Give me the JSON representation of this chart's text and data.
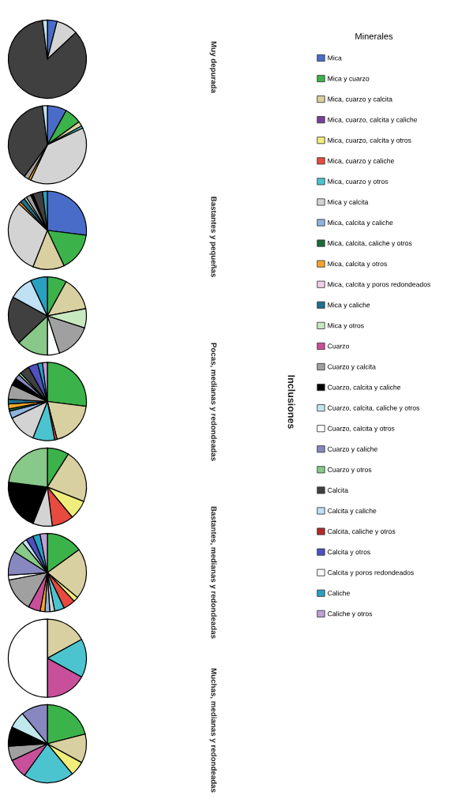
{
  "chart_data": [
    {
      "type": "pie",
      "annotations": [
        "Muy depurada",
        "Bastantes y pequeñas",
        "Pocas, medianas y redondeadas",
        "Bastantes, medianas y redondeadas",
        "Muchas, medianas y redondeadas",
        "Inclusiones"
      ],
      "legend": "right",
      "legend_title": "Minerales",
      "categories": [
        "Mica",
        "Mica y cuarzo",
        "Mica, cuarzo y calcita",
        "Mica, cuarzo, calcita y caliche",
        "Mica, cuarzo, calcita y otros",
        "Mica, cuarzo y caliche",
        "Mica, cuarzo y otros",
        "Mica y calcita",
        "Mica, calcita y caliche",
        "Mica, calcita, caliche y otros",
        "Mica, calcita y otros",
        "Mica, calcita y poros redondeados",
        "Mica y caliche",
        "Mica y otros",
        "Cuarzo",
        "Cuarzo y calcita",
        "Cuarzo, calcita y caliche",
        "Cuarzo, calcita, caliche y otros",
        "Cuarzo, calcita y otros",
        "Cuarzo y caliche",
        "Cuarzo y otros",
        "Calcita",
        "Calcita y caliche",
        "Calcita, caliche y otros",
        "Calcita y otros",
        "Calcita y poros redondeados",
        "Caliche",
        "Caliche y otros"
      ],
      "colors": [
        "#4a6cc9",
        "#3cb34a",
        "#d8d0a0",
        "#7b3f9a",
        "#f0ee7a",
        "#e84a3f",
        "#4cc4cf",
        "#d3d3d3",
        "#8fb4e0",
        "#1a6b3a",
        "#f4a62a",
        "#f2d0ea",
        "#1f6f8f",
        "#c8e8c0",
        "#c8509a",
        "#a0a0a0",
        "#000000",
        "#c0e8ec",
        "#ffffff",
        "#8888c0",
        "#88c888",
        "#404040",
        "#c0e0f4",
        "#b02a2a",
        "#5050c0",
        "#f8f8f8",
        "#2aa0c0",
        "#c0a0d8"
      ],
      "values": [
        4,
        null,
        null,
        null,
        null,
        null,
        null,
        9,
        null,
        null,
        null,
        null,
        null,
        null,
        null,
        null,
        null,
        null,
        null,
        null,
        null,
        85,
        2,
        null,
        null,
        null,
        null,
        null
      ]
    },
    {
      "type": "pie",
      "colors": [
        "#4a6cc9",
        "#3cb34a",
        "#d8d0a0",
        "#7b3f9a",
        "#f0ee7a",
        "#e84a3f",
        "#4cc4cf",
        "#d3d3d3",
        "#8fb4e0",
        "#1a6b3a",
        "#f4a62a",
        "#f2d0ea",
        "#1f6f8f",
        "#c8e8c0",
        "#c8509a",
        "#a0a0a0",
        "#000000",
        "#c0e8ec",
        "#ffffff",
        "#8888c0",
        "#88c888",
        "#404040",
        "#c0e0f4",
        "#b02a2a",
        "#5050c0",
        "#f8f8f8",
        "#2aa0c0",
        "#c0a0d8"
      ],
      "values": [
        8,
        7,
        2,
        null,
        null,
        null,
        1,
        39,
        null,
        null,
        1,
        null,
        null,
        null,
        null,
        2,
        null,
        null,
        null,
        null,
        null,
        38,
        2,
        null,
        null,
        null,
        null,
        null
      ]
    },
    {
      "type": "pie",
      "colors": [
        "#4a6cc9",
        "#3cb34a",
        "#d8d0a0",
        "#7b3f9a",
        "#f0ee7a",
        "#e84a3f",
        "#4cc4cf",
        "#d3d3d3",
        "#8fb4e0",
        "#1a6b3a",
        "#f4a62a",
        "#f2d0ea",
        "#1f6f8f",
        "#c8e8c0",
        "#c8509a",
        "#a0a0a0",
        "#000000",
        "#c0e8ec",
        "#ffffff",
        "#8888c0",
        "#88c888",
        "#404040",
        "#c0e0f4",
        "#b02a2a",
        "#5050c0",
        "#f8f8f8",
        "#2aa0c0",
        "#c0a0d8"
      ],
      "values": [
        27,
        16,
        13,
        null,
        null,
        null,
        null,
        31,
        null,
        null,
        1,
        null,
        2,
        1,
        null,
        2,
        1,
        null,
        null,
        null,
        null,
        4,
        null,
        null,
        null,
        null,
        2,
        null
      ]
    },
    {
      "type": "pie",
      "colors": [
        "#4a6cc9",
        "#3cb34a",
        "#d8d0a0",
        "#7b3f9a",
        "#f0ee7a",
        "#e84a3f",
        "#4cc4cf",
        "#d3d3d3",
        "#8fb4e0",
        "#1a6b3a",
        "#f4a62a",
        "#f2d0ea",
        "#1f6f8f",
        "#c8e8c0",
        "#c8509a",
        "#a0a0a0",
        "#000000",
        "#c0e8ec",
        "#ffffff",
        "#8888c0",
        "#88c888",
        "#404040",
        "#c0e0f4",
        "#b02a2a",
        "#5050c0",
        "#f8f8f8",
        "#2aa0c0",
        "#c0a0d8"
      ],
      "values": [
        null,
        8,
        14,
        null,
        null,
        null,
        null,
        null,
        null,
        null,
        null,
        null,
        null,
        8,
        null,
        15,
        null,
        null,
        5,
        null,
        13,
        20,
        10,
        null,
        null,
        null,
        7,
        null
      ]
    },
    {
      "type": "pie",
      "colors": [
        "#4a6cc9",
        "#3cb34a",
        "#d8d0a0",
        "#7b3f9a",
        "#f0ee7a",
        "#e84a3f",
        "#4cc4cf",
        "#d3d3d3",
        "#8fb4e0",
        "#1a6b3a",
        "#f4a62a",
        "#f2d0ea",
        "#1f6f8f",
        "#c8e8c0",
        "#c8509a",
        "#a0a0a0",
        "#000000",
        "#c0e8ec",
        "#ffffff",
        "#8888c0",
        "#88c888",
        "#404040",
        "#c0e0f4",
        "#b02a2a",
        "#5050c0",
        "#f8f8f8",
        "#2aa0c0",
        "#c0a0d8"
      ],
      "values": [
        null,
        27,
        19,
        null,
        null,
        1,
        9,
        12,
        3,
        1,
        2,
        null,
        2,
        null,
        null,
        6,
        3,
        null,
        null,
        2,
        1,
        4,
        null,
        null,
        4,
        null,
        2,
        2
      ]
    },
    {
      "type": "pie",
      "colors": [
        "#4a6cc9",
        "#3cb34a",
        "#d8d0a0",
        "#7b3f9a",
        "#f0ee7a",
        "#e84a3f",
        "#4cc4cf",
        "#d3d3d3",
        "#8fb4e0",
        "#1a6b3a",
        "#f4a62a",
        "#f2d0ea",
        "#1f6f8f",
        "#c8e8c0",
        "#c8509a",
        "#a0a0a0",
        "#000000",
        "#c0e8ec",
        "#ffffff",
        "#8888c0",
        "#88c888",
        "#404040",
        "#c0e0f4",
        "#b02a2a",
        "#5050c0",
        "#f8f8f8",
        "#2aa0c0",
        "#c0a0d8"
      ],
      "values": [
        null,
        9,
        22,
        null,
        8,
        9,
        null,
        8,
        null,
        null,
        null,
        null,
        null,
        null,
        null,
        null,
        21,
        null,
        null,
        null,
        23,
        null,
        null,
        null,
        null,
        null,
        null,
        null
      ]
    },
    {
      "type": "pie",
      "colors": [
        "#4a6cc9",
        "#3cb34a",
        "#d8d0a0",
        "#7b3f9a",
        "#f0ee7a",
        "#e84a3f",
        "#4cc4cf",
        "#d3d3d3",
        "#8fb4e0",
        "#1a6b3a",
        "#f4a62a",
        "#f2d0ea",
        "#1f6f8f",
        "#c8e8c0",
        "#c8509a",
        "#a0a0a0",
        "#000000",
        "#c0e8ec",
        "#ffffff",
        "#8888c0",
        "#88c888",
        "#404040",
        "#c0e0f4",
        "#b02a2a",
        "#5050c0",
        "#f8f8f8",
        "#2aa0c0",
        "#c0a0d8"
      ],
      "values": [
        null,
        15,
        21,
        null,
        2,
        5,
        4,
        2,
        2,
        null,
        2,
        null,
        null,
        null,
        5,
        14,
        null,
        null,
        2,
        10,
        5,
        null,
        2,
        null,
        3,
        null,
        3,
        3
      ]
    },
    {
      "type": "pie",
      "colors": [
        "#4a6cc9",
        "#3cb34a",
        "#d8d0a0",
        "#7b3f9a",
        "#f0ee7a",
        "#e84a3f",
        "#4cc4cf",
        "#d3d3d3",
        "#8fb4e0",
        "#1a6b3a",
        "#f4a62a",
        "#f2d0ea",
        "#1f6f8f",
        "#c8e8c0",
        "#c8509a",
        "#a0a0a0",
        "#000000",
        "#c0e8ec",
        "#ffffff",
        "#8888c0",
        "#88c888",
        "#404040",
        "#c0e0f4",
        "#b02a2a",
        "#5050c0",
        "#f8f8f8",
        "#2aa0c0",
        "#c0a0d8"
      ],
      "values": [
        null,
        null,
        17,
        null,
        null,
        null,
        16,
        null,
        null,
        null,
        null,
        null,
        null,
        null,
        17,
        null,
        null,
        null,
        50,
        null,
        null,
        null,
        null,
        null,
        null,
        null,
        null,
        null
      ]
    },
    {
      "type": "pie",
      "colors": [
        "#4a6cc9",
        "#3cb34a",
        "#d8d0a0",
        "#7b3f9a",
        "#f0ee7a",
        "#e84a3f",
        "#4cc4cf",
        "#d3d3d3",
        "#8fb4e0",
        "#1a6b3a",
        "#f4a62a",
        "#f2d0ea",
        "#1f6f8f",
        "#c8e8c0",
        "#c8509a",
        "#a0a0a0",
        "#000000",
        "#c0e8ec",
        "#ffffff",
        "#8888c0",
        "#88c888",
        "#404040",
        "#c0e0f4",
        "#b02a2a",
        "#5050c0",
        "#f8f8f8",
        "#2aa0c0",
        "#c0a0d8"
      ],
      "values": [
        null,
        21,
        12,
        null,
        6,
        null,
        21,
        null,
        null,
        null,
        null,
        null,
        null,
        null,
        8,
        6,
        8,
        7,
        null,
        11,
        null,
        null,
        null,
        null,
        null,
        null,
        null,
        null
      ]
    }
  ]
}
